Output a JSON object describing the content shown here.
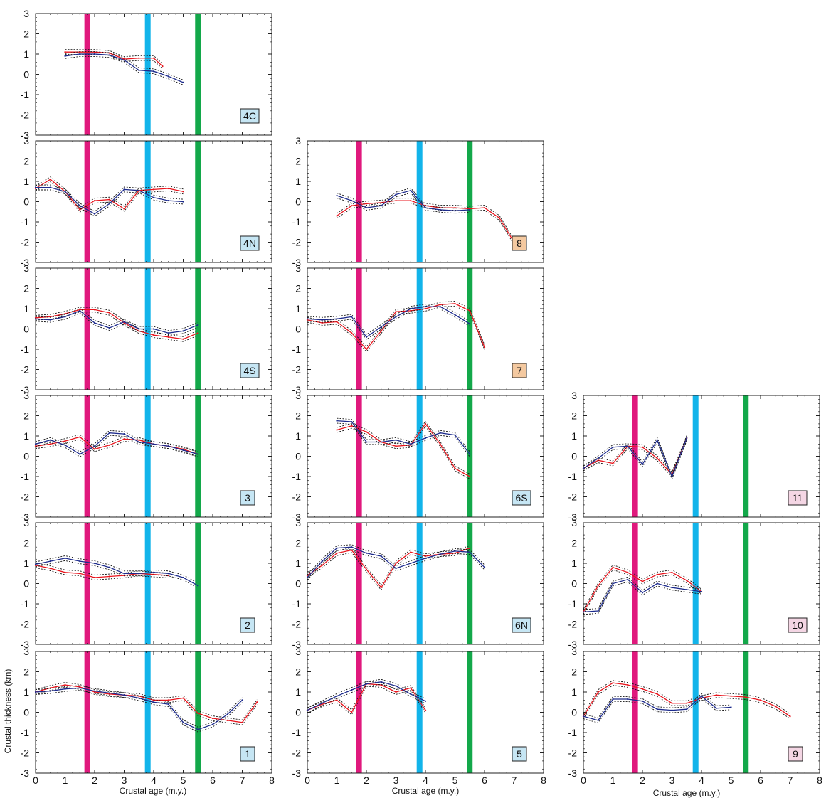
{
  "figure": {
    "xlabel": "Crustal age (m.y.)",
    "ylabel": "Crustal thickness (km)",
    "x_ticks": [
      "0",
      "1",
      "2",
      "3",
      "4",
      "5",
      "6",
      "7",
      "8"
    ],
    "y_ticks": [
      "-3",
      "-2",
      "-1",
      "0",
      "1",
      "2",
      "3"
    ],
    "colors": {
      "red_series": "#e8141c",
      "blue_series": "#1c2a8c",
      "envelope": "#111111",
      "magenta_bar": "#e0197d",
      "cyan_bar": "#12b4ea",
      "green_bar": "#13a84a",
      "label_blue": "#c6e6f4",
      "label_orange": "#f4c9a0",
      "label_pink": "#f4d6e4"
    },
    "vertical_bars_x": [
      1.75,
      3.8,
      5.5
    ]
  },
  "chart_data": [
    {
      "type": "line",
      "label": "4C",
      "label_color": "label_blue",
      "xlim": [
        0,
        8
      ],
      "ylim": [
        -3,
        3
      ],
      "red": {
        "x": [
          1,
          1.5,
          2,
          2.5,
          3,
          3.5,
          4,
          4.3
        ],
        "y": [
          1.1,
          1.1,
          1.1,
          1.05,
          0.75,
          0.8,
          0.8,
          0.4
        ]
      },
      "blue": {
        "x": [
          1,
          1.5,
          2,
          2.5,
          3,
          3.5,
          4,
          4.5,
          5
        ],
        "y": [
          0.9,
          1.0,
          1.0,
          0.95,
          0.7,
          0.2,
          0.15,
          -0.1,
          -0.4
        ]
      }
    },
    {
      "type": "line",
      "label": "4N",
      "label_color": "label_blue",
      "xlim": [
        0,
        8
      ],
      "ylim": [
        -3,
        3
      ],
      "red": {
        "x": [
          0,
          0.5,
          1,
          1.5,
          2,
          2.5,
          3,
          3.5,
          4,
          4.5,
          5
        ],
        "y": [
          0.65,
          1.1,
          0.5,
          -0.4,
          0.05,
          0.1,
          -0.35,
          0.55,
          0.6,
          0.65,
          0.5
        ]
      },
      "blue": {
        "x": [
          0,
          0.5,
          1,
          1.5,
          2,
          2.5,
          3,
          3.5,
          4,
          4.5,
          5
        ],
        "y": [
          0.7,
          0.7,
          0.5,
          -0.2,
          -0.6,
          -0.1,
          0.6,
          0.55,
          0.2,
          0.05,
          0.0
        ]
      }
    },
    {
      "type": "line",
      "label": "8",
      "label_color": "label_orange",
      "xlim": [
        0,
        8
      ],
      "ylim": [
        -3,
        3
      ],
      "red": {
        "x": [
          1,
          1.5,
          2,
          2.5,
          3,
          3.5,
          4,
          4.5,
          5,
          5.5,
          6,
          6.5,
          7
        ],
        "y": [
          -0.7,
          -0.2,
          -0.1,
          -0.05,
          0.05,
          0.05,
          -0.2,
          -0.3,
          -0.3,
          -0.35,
          -0.3,
          -0.8,
          -2.0
        ]
      },
      "blue": {
        "x": [
          1,
          1.5,
          2,
          2.5,
          3,
          3.5,
          4,
          4.5,
          5,
          5.5
        ],
        "y": [
          0.3,
          0.05,
          -0.3,
          -0.2,
          0.35,
          0.55,
          -0.3,
          -0.4,
          -0.45,
          -0.4
        ]
      }
    },
    {
      "type": "line",
      "label": "4S",
      "label_color": "label_blue",
      "xlim": [
        0,
        8
      ],
      "ylim": [
        -3,
        3
      ],
      "red": {
        "x": [
          0,
          0.5,
          1,
          1.5,
          2,
          2.5,
          3,
          3.5,
          4,
          4.5,
          5,
          5.5
        ],
        "y": [
          0.55,
          0.6,
          0.75,
          0.95,
          0.95,
          0.8,
          0.3,
          -0.1,
          -0.3,
          -0.4,
          -0.5,
          -0.2
        ]
      },
      "blue": {
        "x": [
          0,
          0.5,
          1,
          1.5,
          2,
          2.5,
          3,
          3.5,
          4,
          4.5,
          5,
          5.5
        ],
        "y": [
          0.5,
          0.45,
          0.6,
          0.9,
          0.3,
          0.05,
          0.35,
          0.0,
          0.0,
          -0.2,
          -0.1,
          0.2
        ]
      }
    },
    {
      "type": "line",
      "label": "7",
      "label_color": "label_orange",
      "xlim": [
        0,
        8
      ],
      "ylim": [
        -3,
        3
      ],
      "red": {
        "x": [
          0,
          0.5,
          1,
          1.5,
          2,
          2.5,
          3,
          3.5,
          4,
          4.5,
          5,
          5.5,
          6
        ],
        "y": [
          0.45,
          0.3,
          0.35,
          -0.2,
          -1.0,
          -0.1,
          0.85,
          0.9,
          1.0,
          1.2,
          1.25,
          0.9,
          -0.9
        ]
      },
      "blue": {
        "x": [
          0,
          0.5,
          1,
          1.5,
          2,
          2.5,
          3,
          3.5,
          4,
          4.5,
          5,
          5.5
        ],
        "y": [
          0.5,
          0.45,
          0.5,
          0.6,
          -0.4,
          0.1,
          0.6,
          1.0,
          1.1,
          1.1,
          0.7,
          0.25
        ]
      }
    },
    {
      "type": "line",
      "label": "3",
      "label_color": "label_blue",
      "xlim": [
        0,
        8
      ],
      "ylim": [
        -3,
        3
      ],
      "red": {
        "x": [
          0,
          0.5,
          1,
          1.5,
          2,
          2.5,
          3,
          3.5,
          4,
          4.5,
          5,
          5.5
        ],
        "y": [
          0.5,
          0.6,
          0.75,
          0.95,
          0.35,
          0.55,
          0.85,
          0.8,
          0.6,
          0.5,
          0.35,
          0.1
        ]
      },
      "blue": {
        "x": [
          0,
          0.5,
          1,
          1.5,
          2,
          2.5,
          3,
          3.5,
          4,
          4.5,
          5,
          5.5
        ],
        "y": [
          0.6,
          0.8,
          0.55,
          0.1,
          0.5,
          1.15,
          1.1,
          0.7,
          0.6,
          0.5,
          0.3,
          0.1
        ]
      }
    },
    {
      "type": "line",
      "label": "6S",
      "label_color": "label_blue",
      "xlim": [
        0,
        8
      ],
      "ylim": [
        -3,
        3
      ],
      "red": {
        "x": [
          1,
          1.5,
          2,
          2.5,
          3,
          3.5,
          4,
          4.5,
          5,
          5.5
        ],
        "y": [
          1.3,
          1.5,
          1.2,
          0.7,
          0.5,
          0.55,
          1.6,
          0.6,
          -0.6,
          -1.0
        ]
      },
      "blue": {
        "x": [
          1,
          1.5,
          2,
          2.5,
          3,
          3.5,
          4,
          4.5,
          5,
          5.5
        ],
        "y": [
          1.75,
          1.7,
          0.7,
          0.7,
          0.8,
          0.6,
          0.9,
          1.15,
          1.05,
          0.1
        ]
      }
    },
    {
      "type": "line",
      "label": "11",
      "label_color": "label_pink",
      "xlim": [
        0,
        8
      ],
      "ylim": [
        -3,
        3
      ],
      "red": {
        "x": [
          0,
          0.5,
          1,
          1.5,
          2,
          2.5,
          3,
          3.5
        ],
        "y": [
          -0.6,
          -0.2,
          -0.35,
          0.5,
          0.45,
          -0.1,
          -0.9,
          0.9
        ]
      },
      "blue": {
        "x": [
          0,
          0.5,
          1,
          1.5,
          2,
          2.5,
          3,
          3.5
        ],
        "y": [
          -0.6,
          -0.1,
          0.45,
          0.5,
          -0.4,
          0.8,
          -1.0,
          0.9
        ]
      }
    },
    {
      "type": "line",
      "label": "2",
      "label_color": "label_blue",
      "xlim": [
        0,
        8
      ],
      "ylim": [
        -3,
        3
      ],
      "red": {
        "x": [
          0,
          0.5,
          1,
          1.5,
          2,
          2.5,
          3,
          3.5,
          4,
          4.5
        ],
        "y": [
          0.9,
          0.75,
          0.55,
          0.5,
          0.3,
          0.35,
          0.4,
          0.5,
          0.45,
          0.4
        ]
      },
      "blue": {
        "x": [
          0,
          0.5,
          1,
          1.5,
          2,
          2.5,
          3,
          3.5,
          4,
          4.5,
          5,
          5.5
        ],
        "y": [
          0.95,
          1.1,
          1.25,
          1.1,
          1.0,
          0.8,
          0.5,
          0.5,
          0.55,
          0.5,
          0.3,
          -0.1
        ]
      }
    },
    {
      "type": "line",
      "label": "6N",
      "label_color": "label_blue",
      "xlim": [
        0,
        8
      ],
      "ylim": [
        -3,
        3
      ],
      "red": {
        "x": [
          0,
          0.5,
          1,
          1.5,
          2,
          2.5,
          3,
          3.5,
          4,
          4.5,
          5,
          5.5
        ],
        "y": [
          0.4,
          0.9,
          1.5,
          1.65,
          0.7,
          -0.2,
          1.0,
          1.55,
          1.35,
          1.45,
          1.5,
          1.75
        ]
      },
      "blue": {
        "x": [
          0,
          0.5,
          1,
          1.5,
          2,
          2.5,
          3,
          3.5,
          4,
          4.5,
          5,
          5.5,
          6
        ],
        "y": [
          0.3,
          1.1,
          1.75,
          1.8,
          1.5,
          1.35,
          0.75,
          1.0,
          1.25,
          1.45,
          1.6,
          1.55,
          0.8
        ]
      }
    },
    {
      "type": "line",
      "label": "10",
      "label_color": "label_pink",
      "xlim": [
        0,
        8
      ],
      "ylim": [
        -3,
        3
      ],
      "red": {
        "x": [
          0,
          0.5,
          1,
          1.5,
          2,
          2.5,
          3,
          3.5,
          4
        ],
        "y": [
          -1.4,
          -0.1,
          0.8,
          0.55,
          0.1,
          0.45,
          0.55,
          0.15,
          -0.4
        ]
      },
      "blue": {
        "x": [
          0,
          0.5,
          1,
          1.5,
          2,
          2.5,
          3,
          3.5,
          4
        ],
        "y": [
          -1.4,
          -1.35,
          0.0,
          0.2,
          -0.45,
          0.0,
          -0.2,
          -0.3,
          -0.4
        ]
      }
    },
    {
      "type": "line",
      "label": "1",
      "label_color": "label_blue",
      "xlim": [
        0,
        8
      ],
      "ylim": [
        -3,
        3
      ],
      "red": {
        "x": [
          0,
          0.5,
          1,
          1.5,
          2,
          2.5,
          3,
          3.5,
          4,
          4.5,
          5,
          5.5,
          6,
          6.5,
          7,
          7.5
        ],
        "y": [
          1.0,
          1.2,
          1.35,
          1.25,
          1.0,
          0.9,
          0.85,
          0.8,
          0.6,
          0.6,
          0.7,
          -0.05,
          -0.3,
          -0.4,
          -0.5,
          0.5
        ]
      },
      "blue": {
        "x": [
          0,
          0.5,
          1,
          1.5,
          2,
          2.5,
          3,
          3.5,
          4,
          4.5,
          5,
          5.5,
          6,
          6.5,
          7
        ],
        "y": [
          1.0,
          1.05,
          1.15,
          1.2,
          1.05,
          0.95,
          0.85,
          0.7,
          0.5,
          0.4,
          -0.5,
          -0.85,
          -0.6,
          -0.1,
          0.6
        ]
      }
    },
    {
      "type": "line",
      "label": "5",
      "label_color": "label_blue",
      "xlim": [
        0,
        8
      ],
      "ylim": [
        -3,
        3
      ],
      "red": {
        "x": [
          0,
          0.5,
          1,
          1.5,
          2,
          2.5,
          3,
          3.5,
          4
        ],
        "y": [
          0.1,
          0.4,
          0.6,
          0.0,
          1.4,
          1.35,
          1.0,
          1.2,
          0.1
        ]
      },
      "blue": {
        "x": [
          0,
          0.5,
          1,
          1.5,
          2,
          2.5,
          3,
          3.5,
          4
        ],
        "y": [
          0.1,
          0.45,
          0.8,
          1.1,
          1.4,
          1.5,
          1.3,
          0.9,
          0.55
        ]
      }
    },
    {
      "type": "line",
      "label": "9",
      "label_color": "label_pink",
      "xlim": [
        0,
        8
      ],
      "ylim": [
        -3,
        3
      ],
      "red": {
        "x": [
          0,
          0.5,
          1,
          1.5,
          2,
          2.5,
          3,
          3.5,
          4,
          4.5,
          5,
          5.5,
          6,
          6.5,
          7
        ],
        "y": [
          -0.2,
          1.0,
          1.45,
          1.35,
          1.15,
          0.9,
          0.45,
          0.45,
          0.7,
          0.85,
          0.8,
          0.75,
          0.6,
          0.3,
          -0.2
        ]
      },
      "blue": {
        "x": [
          0,
          0.5,
          1,
          1.5,
          2,
          2.5,
          3,
          3.5,
          4,
          4.5,
          5
        ],
        "y": [
          -0.2,
          -0.4,
          0.65,
          0.65,
          0.55,
          0.15,
          0.1,
          0.15,
          0.8,
          0.2,
          0.25
        ]
      }
    }
  ]
}
